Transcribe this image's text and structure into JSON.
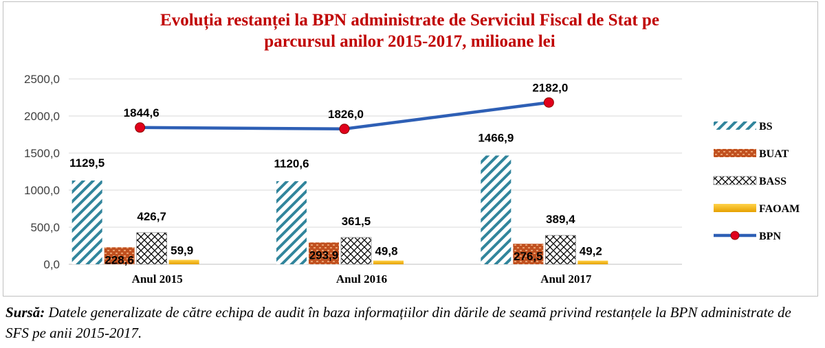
{
  "chart_data": {
    "type": "bar",
    "title_line1": "Evoluția restanței la BPN administrate  de Serviciul Fiscal de Stat pe",
    "title_line2": "parcursul anilor 2015-2017, milioane lei",
    "categories": [
      "Anul 2015",
      "Anul 2016",
      "Anul 2017"
    ],
    "ylim": [
      0,
      2500
    ],
    "yticks": [
      "0,0",
      "500,0",
      "1000,0",
      "1500,0",
      "2000,0",
      "2500,0"
    ],
    "series": [
      {
        "name": "BS",
        "kind": "bar",
        "pattern": "diagonal-stripes",
        "color": "#31859c",
        "values": [
          1129.5,
          1120.6,
          1466.9
        ],
        "labels": [
          "1129,5",
          "1120,6",
          "1466,9"
        ]
      },
      {
        "name": "BUAT",
        "kind": "bar",
        "pattern": "brick",
        "color": "#c0501f",
        "values": [
          228.6,
          293.9,
          276.5
        ],
        "labels": [
          "228,6",
          "293,9",
          "276,5"
        ]
      },
      {
        "name": "BASS",
        "kind": "bar",
        "pattern": "crosshatch",
        "color": "#000000",
        "values": [
          426.7,
          361.5,
          389.4
        ],
        "labels": [
          "426,7",
          "361,5",
          "389,4"
        ]
      },
      {
        "name": "FAOAM",
        "kind": "bar",
        "pattern": "solid",
        "color": "#f2b000",
        "values": [
          59.9,
          49.8,
          49.2
        ],
        "labels": [
          "59,9",
          "49,8",
          "49,2"
        ]
      },
      {
        "name": "BPN",
        "kind": "line",
        "color": "#2e5fb5",
        "marker_color": "#e0001b",
        "values": [
          1844.6,
          1826.0,
          2182.0
        ],
        "labels": [
          "1844,6",
          "1826,0",
          "2182,0"
        ]
      }
    ],
    "legend_position": "right",
    "grid": true
  },
  "source": {
    "label": "Sursă:",
    "text": " Datele generalizate de către echipa de audit în baza informațiilor din dările de seamă privind restanțele la BPN administrate de SFS pe anii 2015-2017."
  }
}
